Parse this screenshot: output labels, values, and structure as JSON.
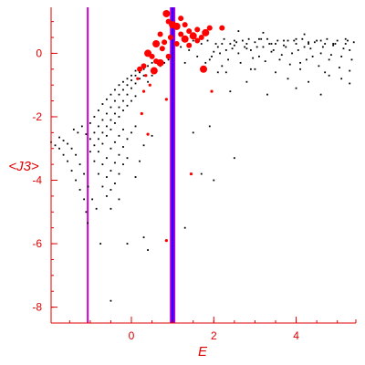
{
  "chart_data": {
    "type": "scatter",
    "title": "",
    "xlabel": "E",
    "ylabel": "<J3>",
    "xlim": [
      -1.95,
      5.45
    ],
    "ylim": [
      -8.5,
      1.45
    ],
    "x_ticks": [
      0,
      2,
      4
    ],
    "y_ticks": [
      0,
      -2,
      -4,
      -6,
      -8
    ],
    "grid": false,
    "colors": {
      "axis": "#e00000",
      "black_points": "#000000",
      "red_points": "#ff0000",
      "line_left": "#cc00cc",
      "line_center": "#3300ff",
      "line_center_edge": "#cc00cc"
    },
    "vertical_lines": [
      {
        "x": -1.06,
        "color": "#cc00cc"
      },
      {
        "x": 1.0,
        "color": "#3300ff"
      }
    ],
    "series": [
      {
        "color": "black",
        "points": [
          [
            -1.95,
            -2.8
          ],
          [
            -1.85,
            -2.9
          ],
          [
            -1.75,
            -3.0
          ],
          [
            -1.65,
            -3.2
          ],
          [
            -1.55,
            -3.4
          ],
          [
            -1.45,
            -3.7
          ],
          [
            -1.35,
            -4.0
          ],
          [
            -1.25,
            -4.3
          ],
          [
            -1.15,
            -4.6
          ],
          [
            -1.1,
            -5.0
          ],
          [
            -1.06,
            -5.35
          ],
          [
            -1.75,
            -2.65
          ],
          [
            -1.65,
            -2.75
          ],
          [
            -1.55,
            -2.85
          ],
          [
            -1.45,
            -3.0
          ],
          [
            -1.35,
            -3.2
          ],
          [
            -1.25,
            -3.5
          ],
          [
            -1.15,
            -3.8
          ],
          [
            -1.05,
            -4.2
          ],
          [
            -0.95,
            -4.6
          ],
          [
            -0.85,
            -4.9
          ],
          [
            -1.4,
            -2.4
          ],
          [
            -1.3,
            -2.5
          ],
          [
            -1.2,
            -2.3
          ],
          [
            -1.1,
            -2.55
          ],
          [
            -1.0,
            -2.7
          ],
          [
            -0.9,
            -2.5
          ],
          [
            -0.8,
            -2.3
          ],
          [
            -0.7,
            -2.1
          ],
          [
            -0.6,
            -1.9
          ],
          [
            -0.5,
            -1.7
          ],
          [
            -0.4,
            -1.5
          ],
          [
            -0.3,
            -1.3
          ],
          [
            -0.2,
            -1.15
          ],
          [
            -0.1,
            -1.0
          ],
          [
            0.0,
            -0.85
          ],
          [
            0.1,
            -0.7
          ],
          [
            0.2,
            -0.6
          ],
          [
            0.3,
            -0.5
          ],
          [
            0.4,
            -0.4
          ],
          [
            0.5,
            -0.3
          ],
          [
            0.6,
            -0.2
          ],
          [
            -1.0,
            -3.1
          ],
          [
            -0.9,
            -2.9
          ],
          [
            -0.8,
            -2.7
          ],
          [
            -0.7,
            -2.5
          ],
          [
            -0.6,
            -2.3
          ],
          [
            -0.5,
            -2.1
          ],
          [
            -0.4,
            -1.9
          ],
          [
            -0.3,
            -1.7
          ],
          [
            -0.2,
            -1.5
          ],
          [
            -0.1,
            -1.3
          ],
          [
            0.0,
            -1.1
          ],
          [
            0.1,
            -0.95
          ],
          [
            0.2,
            -0.8
          ],
          [
            0.3,
            -0.7
          ],
          [
            -1.0,
            -2.2
          ],
          [
            -0.9,
            -2.0
          ],
          [
            -0.8,
            -1.8
          ],
          [
            -0.7,
            -1.6
          ],
          [
            -0.6,
            -1.45
          ],
          [
            -0.5,
            -1.3
          ],
          [
            -0.4,
            -1.15
          ],
          [
            -0.3,
            -1.0
          ],
          [
            -0.2,
            -0.9
          ],
          [
            -0.1,
            -0.8
          ],
          [
            0.0,
            -0.7
          ],
          [
            0.1,
            -0.55
          ],
          [
            0.2,
            -0.45
          ],
          [
            -0.9,
            -3.4
          ],
          [
            -0.8,
            -3.1
          ],
          [
            -0.7,
            -2.85
          ],
          [
            -0.6,
            -2.6
          ],
          [
            -0.5,
            -2.4
          ],
          [
            -0.4,
            -2.2
          ],
          [
            -0.3,
            -2.0
          ],
          [
            -0.2,
            -1.8
          ],
          [
            -0.1,
            -1.65
          ],
          [
            0.0,
            -1.5
          ],
          [
            0.1,
            -1.35
          ],
          [
            -0.8,
            -3.8
          ],
          [
            -0.7,
            -3.5
          ],
          [
            -0.6,
            -3.3
          ],
          [
            -0.5,
            -3.0
          ],
          [
            -0.4,
            -2.8
          ],
          [
            -0.3,
            -2.6
          ],
          [
            -0.2,
            -2.4
          ],
          [
            -0.7,
            -4.2
          ],
          [
            -0.6,
            -3.9
          ],
          [
            -0.5,
            -3.7
          ],
          [
            -0.4,
            -3.45
          ],
          [
            -0.3,
            -3.2
          ],
          [
            -0.2,
            -2.95
          ],
          [
            -0.1,
            -2.7
          ],
          [
            0.0,
            -2.5
          ],
          [
            0.1,
            -2.3
          ],
          [
            -0.6,
            -4.5
          ],
          [
            -0.5,
            -4.3
          ],
          [
            -0.4,
            -4.1
          ],
          [
            -0.3,
            -3.8
          ],
          [
            -0.2,
            -3.5
          ],
          [
            -0.1,
            -3.3
          ],
          [
            -0.5,
            -4.9
          ],
          [
            -0.3,
            -4.6
          ],
          [
            0.1,
            -3.9
          ],
          [
            0.2,
            -3.4
          ],
          [
            0.3,
            -2.9
          ],
          [
            0.3,
            -5.8
          ],
          [
            0.4,
            -6.2
          ],
          [
            -0.75,
            -6.0
          ],
          [
            -0.1,
            -6.0
          ],
          [
            -0.5,
            -7.8
          ],
          [
            0.5,
            -2.6
          ],
          [
            0.4,
            -0.9
          ],
          [
            0.5,
            -0.7
          ],
          [
            0.6,
            -0.5
          ],
          [
            0.7,
            -0.4
          ],
          [
            0.8,
            -0.3
          ],
          [
            0.9,
            -0.2
          ],
          [
            1.5,
            -2.5
          ],
          [
            1.7,
            -3.8
          ],
          [
            2.0,
            -4.0
          ],
          [
            1.3,
            -5.5
          ],
          [
            2.5,
            -3.3
          ],
          [
            1.9,
            -2.3
          ],
          [
            2.1,
            -0.6
          ],
          [
            2.4,
            -1.2
          ],
          [
            2.8,
            -0.9
          ],
          [
            3.3,
            -1.3
          ],
          [
            4.0,
            -1.1
          ],
          [
            4.6,
            -1.3
          ],
          [
            5.1,
            -0.8
          ],
          [
            5.3,
            -0.95
          ],
          [
            4.8,
            -0.7
          ],
          [
            4.3,
            -0.9
          ],
          [
            3.8,
            -0.8
          ],
          [
            3.0,
            -0.5
          ],
          [
            1.8,
            -0.3
          ],
          [
            1.9,
            -0.2
          ],
          [
            2.0,
            0.05
          ],
          [
            2.1,
            0.2
          ],
          [
            2.2,
            -0.4
          ],
          [
            2.3,
            0.1
          ],
          [
            2.4,
            0.3
          ],
          [
            2.5,
            0.25
          ],
          [
            2.6,
            0.0
          ],
          [
            2.7,
            0.4
          ],
          [
            2.8,
            0.15
          ],
          [
            2.9,
            0.1
          ],
          [
            3.0,
            0.35
          ],
          [
            3.1,
            -0.1
          ],
          [
            3.2,
            0.2
          ],
          [
            3.3,
            0.45
          ],
          [
            3.4,
            0.05
          ],
          [
            3.5,
            0.3
          ],
          [
            3.6,
            -0.2
          ],
          [
            3.7,
            0.25
          ],
          [
            3.8,
            0.4
          ],
          [
            3.9,
            0.0
          ],
          [
            4.0,
            0.3
          ],
          [
            4.1,
            -0.3
          ],
          [
            4.2,
            0.2
          ],
          [
            4.3,
            0.35
          ],
          [
            4.4,
            -0.1
          ],
          [
            4.5,
            0.4
          ],
          [
            4.6,
            0.0
          ],
          [
            4.7,
            0.3
          ],
          [
            4.8,
            -0.2
          ],
          [
            4.9,
            0.25
          ],
          [
            5.0,
            0.4
          ],
          [
            5.1,
            -0.1
          ],
          [
            5.2,
            0.3
          ],
          [
            5.3,
            0.1
          ],
          [
            5.4,
            0.35
          ],
          [
            1.85,
            0.4
          ],
          [
            1.95,
            -0.1
          ],
          [
            2.05,
            0.3
          ],
          [
            2.15,
            0.0
          ],
          [
            2.25,
            0.45
          ],
          [
            2.35,
            -0.2
          ],
          [
            2.45,
            0.15
          ],
          [
            2.55,
            0.35
          ],
          [
            2.65,
            -0.3
          ],
          [
            2.75,
            0.2
          ],
          [
            2.85,
            0.45
          ],
          [
            2.95,
            -0.15
          ],
          [
            3.05,
            0.2
          ],
          [
            3.15,
            0.45
          ],
          [
            3.25,
            -0.25
          ],
          [
            3.35,
            0.3
          ],
          [
            3.45,
            0.1
          ],
          [
            3.55,
            0.4
          ],
          [
            3.65,
            -0.05
          ],
          [
            3.75,
            0.2
          ],
          [
            3.85,
            -0.35
          ],
          [
            3.95,
            0.4
          ],
          [
            4.05,
            0.1
          ],
          [
            4.15,
            0.45
          ],
          [
            4.25,
            -0.2
          ],
          [
            4.35,
            0.15
          ],
          [
            4.45,
            0.35
          ],
          [
            4.55,
            -0.4
          ],
          [
            4.65,
            0.2
          ],
          [
            4.75,
            0.45
          ],
          [
            4.85,
            -0.05
          ],
          [
            4.95,
            0.3
          ],
          [
            5.05,
            -0.45
          ],
          [
            5.15,
            0.15
          ],
          [
            5.25,
            0.4
          ],
          [
            5.35,
            -0.2
          ],
          [
            2.2,
            0.3
          ],
          [
            2.5,
            0.4
          ],
          [
            2.8,
            0.3
          ],
          [
            3.1,
            0.45
          ],
          [
            3.4,
            0.3
          ],
          [
            3.7,
            0.4
          ],
          [
            4.0,
            0.45
          ],
          [
            4.3,
            0.3
          ],
          [
            4.6,
            0.4
          ],
          [
            4.9,
            0.3
          ],
          [
            5.2,
            0.45
          ],
          [
            2.3,
            -0.6
          ],
          [
            2.9,
            -0.5
          ],
          [
            3.5,
            -0.6
          ],
          [
            4.1,
            -0.5
          ],
          [
            4.7,
            -0.6
          ],
          [
            5.3,
            -0.55
          ],
          [
            3.2,
            0.65
          ],
          [
            2.6,
            0.7
          ],
          [
            4.2,
            0.6
          ],
          [
            1.7,
            0.3
          ],
          [
            1.6,
            -0.1
          ],
          [
            1.5,
            0.4
          ],
          [
            1.4,
            0.1
          ],
          [
            1.3,
            -0.3
          ],
          [
            1.2,
            0.2
          ]
        ]
      },
      {
        "color": "red",
        "points": [
          [
            0.85,
            1.25
          ],
          [
            1.2,
            1.1
          ],
          [
            0.9,
            1.0
          ],
          [
            1.1,
            0.85
          ],
          [
            1.3,
            0.9
          ],
          [
            1.4,
            0.7
          ],
          [
            1.5,
            0.55
          ],
          [
            1.6,
            0.75
          ],
          [
            1.7,
            0.5
          ],
          [
            1.8,
            0.65
          ],
          [
            1.9,
            0.8
          ],
          [
            1.6,
            0.4
          ],
          [
            1.3,
            0.45
          ],
          [
            0.95,
            0.5
          ],
          [
            0.8,
            0.35
          ],
          [
            0.6,
            0.3
          ],
          [
            0.75,
            0.15
          ],
          [
            0.9,
            -0.1
          ],
          [
            0.7,
            -0.3
          ],
          [
            0.6,
            -0.25
          ],
          [
            0.5,
            -0.1
          ],
          [
            0.4,
            0.0
          ],
          [
            0.3,
            -0.4
          ],
          [
            0.2,
            -0.5
          ],
          [
            0.55,
            -0.55
          ],
          [
            0.35,
            -0.7
          ],
          [
            0.15,
            -0.8
          ],
          [
            0.45,
            -1.0
          ],
          [
            0.3,
            -1.2
          ],
          [
            0.85,
            -1.45
          ],
          [
            0.25,
            -1.9
          ],
          [
            0.4,
            -2.55
          ],
          [
            1.45,
            -3.8
          ],
          [
            0.85,
            -5.9
          ],
          [
            1.4,
            0.25
          ],
          [
            2.2,
            0.8
          ],
          [
            1.0,
            0.9
          ],
          [
            0.7,
            0.6
          ],
          [
            1.2,
            0.6
          ],
          [
            1.75,
            -0.5
          ],
          [
            1.95,
            -1.2
          ],
          [
            1.1,
            0.3
          ]
        ]
      }
    ]
  }
}
